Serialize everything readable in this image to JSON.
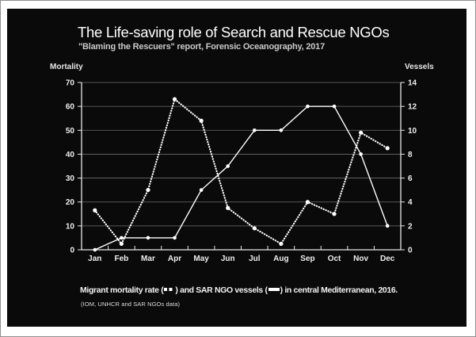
{
  "chart_data": {
    "type": "line",
    "title": "The Life-saving role of Search and Rescue NGOs",
    "subtitle": "\"Blaming the Rescuers\" report, Forensic Oceanography, 2017",
    "categories": [
      "Jan",
      "Feb",
      "Mar",
      "Apr",
      "May",
      "Jun",
      "Jul",
      "Aug",
      "Sep",
      "Oct",
      "Nov",
      "Dec"
    ],
    "series": [
      {
        "id": "mortality",
        "name": "Migrant mortality rate",
        "axis": "left",
        "line_style": "dotted",
        "marker": "circle",
        "values": [
          16.5,
          2.5,
          25,
          63,
          54,
          17.5,
          9,
          2.5,
          20,
          15,
          49,
          42.5
        ]
      },
      {
        "id": "vessels",
        "name": "SAR NGO vessels",
        "axis": "right",
        "line_style": "solid",
        "marker": "circle",
        "values": [
          0,
          1,
          1,
          1,
          5,
          7,
          10,
          10,
          12,
          12,
          8,
          2
        ]
      }
    ],
    "left_axis": {
      "label": "Mortality",
      "range": [
        0,
        70
      ],
      "ticks": [
        0,
        10,
        20,
        30,
        40,
        50,
        60,
        70
      ]
    },
    "right_axis": {
      "label": "Vessels",
      "range": [
        0,
        14
      ],
      "ticks": [
        0,
        2,
        4,
        6,
        8,
        10,
        12,
        14
      ]
    },
    "grid": true,
    "legend_position": "caption-bottom",
    "colors": {
      "background": "#0a0a0a",
      "line": "#ffffff",
      "grid": "#6e6e6e",
      "axis": "#e8e8e8",
      "title": "#ffffff",
      "subtitle": "#c9c9c9",
      "tick_label": "#ededed"
    }
  },
  "caption": {
    "text_before_mortality_swatch": "Migrant mortality rate (",
    "text_between_swatches": ") and SAR NGO vessels (",
    "text_after_vessels_swatch": ") in central Mediterranean, 2016.",
    "source": "(IOM, UNHCR and SAR NGOs data)"
  }
}
